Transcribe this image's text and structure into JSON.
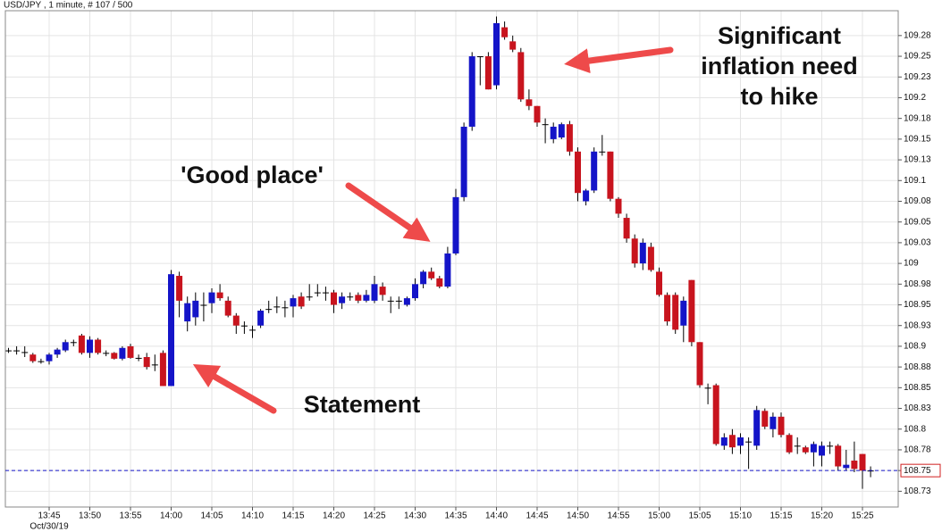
{
  "chart_data": {
    "type": "candlestick",
    "title": "USD/JPY , 1 minute, # 107 / 500",
    "date_label": "Oct/30/19",
    "categories": [
      null,
      null,
      null,
      null,
      null,
      "13:45",
      null,
      null,
      null,
      null,
      "13:50",
      null,
      null,
      null,
      null,
      "13:55",
      null,
      null,
      null,
      null,
      "14:00",
      null,
      null,
      null,
      null,
      "14:05",
      null,
      null,
      null,
      null,
      "14:10",
      null,
      null,
      null,
      null,
      "14:15",
      null,
      null,
      null,
      null,
      "14:20",
      null,
      null,
      null,
      null,
      "14:25",
      null,
      null,
      null,
      null,
      "14:30",
      null,
      null,
      null,
      null,
      "14:35",
      null,
      null,
      null,
      null,
      "14:40",
      null,
      null,
      null,
      null,
      "14:45",
      null,
      null,
      null,
      null,
      "14:50",
      null,
      null,
      null,
      null,
      "14:55",
      null,
      null,
      null,
      null,
      "15:00",
      null,
      null,
      null,
      null,
      "15:05",
      null,
      null,
      null,
      null,
      "15:10",
      null,
      null,
      null,
      null,
      "15:15",
      null,
      null,
      null,
      null,
      "15:20",
      null,
      null,
      null,
      null,
      "15:25",
      null
    ],
    "open": [
      108.895,
      108.895,
      108.893,
      108.89,
      108.882,
      108.882,
      108.89,
      108.895,
      108.905,
      108.913,
      108.892,
      108.908,
      108.892,
      108.892,
      108.885,
      108.9,
      108.886,
      108.887,
      108.878,
      108.892,
      108.852,
      108.985,
      108.93,
      108.935,
      108.95,
      108.952,
      108.965,
      108.955,
      108.937,
      108.925,
      108.92,
      108.925,
      108.945,
      108.948,
      108.947,
      108.948,
      108.96,
      108.96,
      108.965,
      108.965,
      108.965,
      108.952,
      108.96,
      108.962,
      108.955,
      108.955,
      108.972,
      108.955,
      108.955,
      108.95,
      108.958,
      108.975,
      108.99,
      108.982,
      108.972,
      109.012,
      109.08,
      109.165,
      109.25,
      109.25,
      109.215,
      109.285,
      109.268,
      109.255,
      109.198,
      109.19,
      109.168,
      109.15,
      109.152,
      109.168,
      109.135,
      109.075,
      109.088,
      109.135,
      109.135,
      109.078,
      109.055,
      109.03,
      109.0,
      109.02,
      108.99,
      108.962,
      108.962,
      108.925,
      108.98,
      108.905,
      108.85,
      108.853,
      108.78,
      108.793,
      108.78,
      108.785,
      108.78,
      108.822,
      108.8,
      108.815,
      108.793,
      108.78,
      108.778,
      108.772,
      108.768,
      108.78,
      108.78,
      108.753,
      108.762,
      108.77,
      108.75
    ],
    "high": [
      108.898,
      108.9,
      108.9,
      108.892,
      108.885,
      108.892,
      108.898,
      108.908,
      108.908,
      108.915,
      108.912,
      108.91,
      108.895,
      108.893,
      108.9,
      108.903,
      108.89,
      108.892,
      108.89,
      108.895,
      108.992,
      108.99,
      108.96,
      108.965,
      108.965,
      108.97,
      108.975,
      108.96,
      108.94,
      108.93,
      108.925,
      108.945,
      108.955,
      108.96,
      108.955,
      108.962,
      108.965,
      108.975,
      108.975,
      108.972,
      108.968,
      108.965,
      108.965,
      108.965,
      108.968,
      108.985,
      108.977,
      108.96,
      108.96,
      108.96,
      108.982,
      108.992,
      108.995,
      108.985,
      109.02,
      109.09,
      109.17,
      109.255,
      109.25,
      109.255,
      109.298,
      109.292,
      109.275,
      109.26,
      109.21,
      109.19,
      109.175,
      109.17,
      109.17,
      109.172,
      109.14,
      109.09,
      109.14,
      109.155,
      109.135,
      109.08,
      109.06,
      109.035,
      109.03,
      109.025,
      108.995,
      108.965,
      108.965,
      108.96,
      108.98,
      108.905,
      108.855,
      108.855,
      108.795,
      108.8,
      108.795,
      108.79,
      108.828,
      108.825,
      108.82,
      108.82,
      108.795,
      108.79,
      108.78,
      108.785,
      108.785,
      108.785,
      108.782,
      108.775,
      108.785,
      108.77,
      108.755
    ],
    "low": [
      108.892,
      108.89,
      108.887,
      108.88,
      108.879,
      108.878,
      108.886,
      108.893,
      108.9,
      108.89,
      108.886,
      108.89,
      108.888,
      108.884,
      108.883,
      108.885,
      108.882,
      108.872,
      108.87,
      108.852,
      108.852,
      108.935,
      108.918,
      108.925,
      108.93,
      108.94,
      108.955,
      108.935,
      108.915,
      108.915,
      108.91,
      108.922,
      108.94,
      108.94,
      108.935,
      108.935,
      108.945,
      108.955,
      108.96,
      108.955,
      108.94,
      108.945,
      108.955,
      108.952,
      108.953,
      108.952,
      108.955,
      108.94,
      108.945,
      108.948,
      108.955,
      108.97,
      108.98,
      108.97,
      108.97,
      109.01,
      109.075,
      109.16,
      109.215,
      109.21,
      109.21,
      109.27,
      109.255,
      109.195,
      109.185,
      109.165,
      109.145,
      109.145,
      109.15,
      109.13,
      109.075,
      109.07,
      109.085,
      109.13,
      109.075,
      109.055,
      109.025,
      108.995,
      108.992,
      108.99,
      108.96,
      108.925,
      108.915,
      108.905,
      108.9,
      108.85,
      108.83,
      108.78,
      108.775,
      108.77,
      108.77,
      108.752,
      108.775,
      108.8,
      108.79,
      108.79,
      108.77,
      108.77,
      108.77,
      108.755,
      108.755,
      108.77,
      108.75,
      108.75,
      108.748,
      108.728,
      108.742
    ],
    "close": [
      108.895,
      108.895,
      108.893,
      108.882,
      108.882,
      108.89,
      108.896,
      108.905,
      108.905,
      108.892,
      108.908,
      108.892,
      108.892,
      108.885,
      108.898,
      108.886,
      108.886,
      108.875,
      108.878,
      108.852,
      108.987,
      108.955,
      108.952,
      108.955,
      108.95,
      108.965,
      108.958,
      108.937,
      108.925,
      108.925,
      108.92,
      108.943,
      108.945,
      108.948,
      108.947,
      108.958,
      108.948,
      108.96,
      108.965,
      108.965,
      108.95,
      108.96,
      108.96,
      108.955,
      108.962,
      108.975,
      108.962,
      108.955,
      108.955,
      108.958,
      108.975,
      108.99,
      108.982,
      108.972,
      109.012,
      109.08,
      109.165,
      109.25,
      109.25,
      109.21,
      109.29,
      109.273,
      109.258,
      109.198,
      109.19,
      109.17,
      109.168,
      109.165,
      109.168,
      109.135,
      109.085,
      109.088,
      109.135,
      109.135,
      109.078,
      109.06,
      109.03,
      109.0,
      109.025,
      108.992,
      108.962,
      108.93,
      108.92,
      108.955,
      108.905,
      108.853,
      108.85,
      108.782,
      108.79,
      108.778,
      108.79,
      108.785,
      108.823,
      108.803,
      108.815,
      108.793,
      108.772,
      108.78,
      108.772,
      108.782,
      108.78,
      108.78,
      108.755,
      108.757,
      108.752,
      108.75,
      108.75
    ],
    "up_color": "#1414c8",
    "down_color": "#c8141e",
    "doji_color": "#000000",
    "ylim": [
      108.706,
      109.305
    ],
    "yticks": [
      {
        "value": 108.725,
        "label": "108.73"
      },
      108.75,
      {
        "value": 108.775,
        "label": "108.78"
      },
      108.8,
      {
        "value": 108.825,
        "label": "108.83"
      },
      108.85,
      {
        "value": 108.875,
        "label": "108.88"
      },
      108.9,
      {
        "value": 108.925,
        "label": "108.93"
      },
      108.95,
      {
        "value": 108.975,
        "label": "108.98"
      },
      109,
      {
        "value": 109.025,
        "label": "109.03"
      },
      109.05,
      {
        "value": 109.075,
        "label": "109.08"
      },
      109.1,
      {
        "value": 109.125,
        "label": "109.13"
      },
      109.15,
      {
        "value": 109.175,
        "label": "109.18"
      },
      109.2,
      {
        "value": 109.225,
        "label": "109.23"
      },
      109.25,
      {
        "value": 109.275,
        "label": "109.28"
      }
    ],
    "last_price": 108.75,
    "last_price_color": "#1414c8",
    "grid": true,
    "annotations": {
      "inflation": [
        "Significant",
        "inflation need",
        "to hike"
      ],
      "good_place": "'Good place'",
      "statement": "Statement"
    }
  }
}
